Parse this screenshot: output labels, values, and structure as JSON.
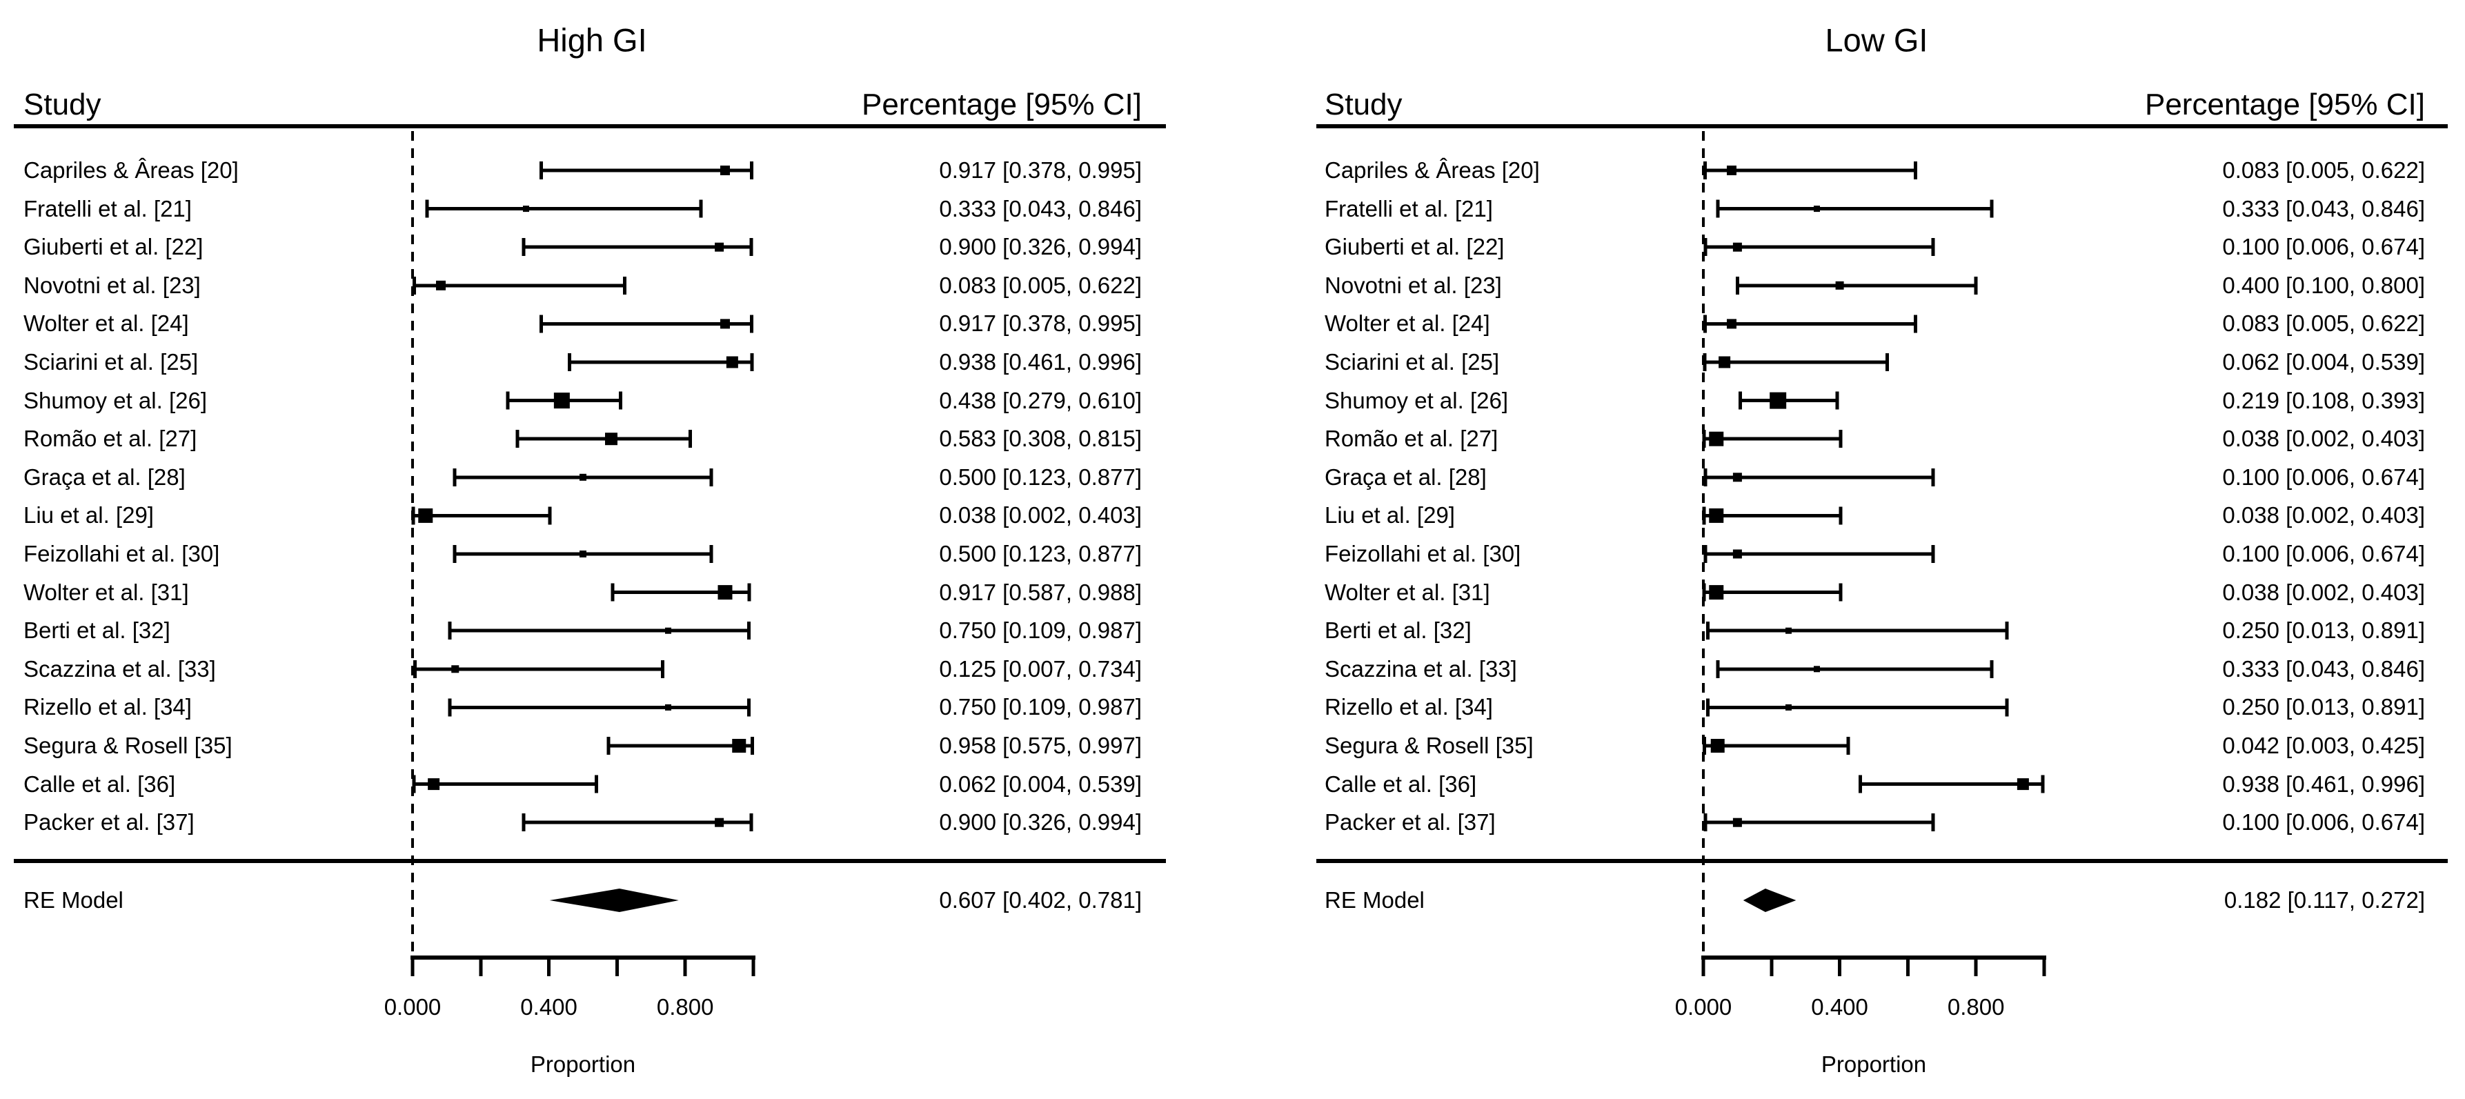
{
  "chart_data": [
    {
      "type": "scatter",
      "variant": "forest-plot",
      "title": "High GI",
      "columns": {
        "study": "Study",
        "value": "Percentage [95% CI]"
      },
      "xlabel": "Proportion",
      "xlim": [
        0,
        1
      ],
      "x_ticks": [
        0,
        0.2,
        0.4,
        0.6,
        0.8,
        1.0
      ],
      "x_tick_labels": [
        {
          "v": 0.0,
          "label": "0.000"
        },
        {
          "v": 0.4,
          "label": "0.400"
        },
        {
          "v": 0.8,
          "label": "0.800"
        }
      ],
      "zero_line": "dashed",
      "studies": [
        {
          "label": "Capriles & Âreas [20]",
          "est": 0.917,
          "lo": 0.378,
          "hi": 0.995,
          "ci_text": "0.917 [0.378, 0.995]"
        },
        {
          "label": "Fratelli et al. [21]",
          "est": 0.333,
          "lo": 0.043,
          "hi": 0.846,
          "ci_text": "0.333 [0.043, 0.846]"
        },
        {
          "label": "Giuberti et al. [22]",
          "est": 0.9,
          "lo": 0.326,
          "hi": 0.994,
          "ci_text": "0.900 [0.326, 0.994]"
        },
        {
          "label": "Novotni et al. [23]",
          "est": 0.083,
          "lo": 0.005,
          "hi": 0.622,
          "ci_text": "0.083 [0.005, 0.622]"
        },
        {
          "label": "Wolter et al. [24]",
          "est": 0.917,
          "lo": 0.378,
          "hi": 0.995,
          "ci_text": "0.917 [0.378, 0.995]"
        },
        {
          "label": "Sciarini et al. [25]",
          "est": 0.938,
          "lo": 0.461,
          "hi": 0.996,
          "ci_text": "0.938 [0.461, 0.996]"
        },
        {
          "label": "Shumoy et al. [26]",
          "est": 0.438,
          "lo": 0.279,
          "hi": 0.61,
          "ci_text": "0.438 [0.279, 0.610]"
        },
        {
          "label": "Romão et al. [27]",
          "est": 0.583,
          "lo": 0.308,
          "hi": 0.815,
          "ci_text": "0.583 [0.308, 0.815]"
        },
        {
          "label": "Graça et al. [28]",
          "est": 0.5,
          "lo": 0.123,
          "hi": 0.877,
          "ci_text": "0.500 [0.123, 0.877]"
        },
        {
          "label": "Liu et al. [29]",
          "est": 0.038,
          "lo": 0.002,
          "hi": 0.403,
          "ci_text": "0.038 [0.002, 0.403]"
        },
        {
          "label": "Feizollahi et al. [30]",
          "est": 0.5,
          "lo": 0.123,
          "hi": 0.877,
          "ci_text": "0.500 [0.123, 0.877]"
        },
        {
          "label": "Wolter et al. [31]",
          "est": 0.917,
          "lo": 0.587,
          "hi": 0.988,
          "ci_text": "0.917 [0.587, 0.988]"
        },
        {
          "label": "Berti et al. [32]",
          "est": 0.75,
          "lo": 0.109,
          "hi": 0.987,
          "ci_text": "0.750 [0.109, 0.987]"
        },
        {
          "label": "Scazzina et al. [33]",
          "est": 0.125,
          "lo": 0.007,
          "hi": 0.734,
          "ci_text": "0.125 [0.007, 0.734]"
        },
        {
          "label": "Rizello et al. [34]",
          "est": 0.75,
          "lo": 0.109,
          "hi": 0.987,
          "ci_text": "0.750 [0.109, 0.987]"
        },
        {
          "label": "Segura & Rosell [35]",
          "est": 0.958,
          "lo": 0.575,
          "hi": 0.997,
          "ci_text": "0.958 [0.575, 0.997]"
        },
        {
          "label": "Calle et al. [36]",
          "est": 0.062,
          "lo": 0.004,
          "hi": 0.539,
          "ci_text": "0.062 [0.004, 0.539]"
        },
        {
          "label": "Packer et al. [37]",
          "est": 0.9,
          "lo": 0.326,
          "hi": 0.994,
          "ci_text": "0.900 [0.326, 0.994]"
        }
      ],
      "summary": {
        "label": "RE Model",
        "est": 0.607,
        "lo": 0.402,
        "hi": 0.781,
        "ci_text": "0.607 [0.402, 0.781]"
      }
    },
    {
      "type": "scatter",
      "variant": "forest-plot",
      "title": "Low GI",
      "columns": {
        "study": "Study",
        "value": "Percentage [95% CI]"
      },
      "xlabel": "Proportion",
      "xlim": [
        0,
        1
      ],
      "x_ticks": [
        0,
        0.2,
        0.4,
        0.6,
        0.8,
        1.0
      ],
      "x_tick_labels": [
        {
          "v": 0.0,
          "label": "0.000"
        },
        {
          "v": 0.4,
          "label": "0.400"
        },
        {
          "v": 0.8,
          "label": "0.800"
        }
      ],
      "zero_line": "dashed",
      "studies": [
        {
          "label": "Capriles & Âreas [20]",
          "est": 0.083,
          "lo": 0.005,
          "hi": 0.622,
          "ci_text": "0.083 [0.005, 0.622]"
        },
        {
          "label": "Fratelli et al. [21]",
          "est": 0.333,
          "lo": 0.043,
          "hi": 0.846,
          "ci_text": "0.333 [0.043, 0.846]"
        },
        {
          "label": "Giuberti et al. [22]",
          "est": 0.1,
          "lo": 0.006,
          "hi": 0.674,
          "ci_text": "0.100 [0.006, 0.674]"
        },
        {
          "label": "Novotni et al. [23]",
          "est": 0.4,
          "lo": 0.1,
          "hi": 0.8,
          "ci_text": "0.400 [0.100, 0.800]"
        },
        {
          "label": "Wolter et al. [24]",
          "est": 0.083,
          "lo": 0.005,
          "hi": 0.622,
          "ci_text": "0.083 [0.005, 0.622]"
        },
        {
          "label": "Sciarini et al. [25]",
          "est": 0.062,
          "lo": 0.004,
          "hi": 0.539,
          "ci_text": "0.062 [0.004, 0.539]"
        },
        {
          "label": "Shumoy et al. [26]",
          "est": 0.219,
          "lo": 0.108,
          "hi": 0.393,
          "ci_text": "0.219 [0.108, 0.393]"
        },
        {
          "label": "Romão et al. [27]",
          "est": 0.038,
          "lo": 0.002,
          "hi": 0.403,
          "ci_text": "0.038 [0.002, 0.403]"
        },
        {
          "label": "Graça et al. [28]",
          "est": 0.1,
          "lo": 0.006,
          "hi": 0.674,
          "ci_text": "0.100 [0.006, 0.674]"
        },
        {
          "label": "Liu et al. [29]",
          "est": 0.038,
          "lo": 0.002,
          "hi": 0.403,
          "ci_text": "0.038 [0.002, 0.403]"
        },
        {
          "label": "Feizollahi et al. [30]",
          "est": 0.1,
          "lo": 0.006,
          "hi": 0.674,
          "ci_text": "0.100 [0.006, 0.674]"
        },
        {
          "label": "Wolter et al. [31]",
          "est": 0.038,
          "lo": 0.002,
          "hi": 0.403,
          "ci_text": "0.038 [0.002, 0.403]"
        },
        {
          "label": "Berti et al. [32]",
          "est": 0.25,
          "lo": 0.013,
          "hi": 0.891,
          "ci_text": "0.250 [0.013, 0.891]"
        },
        {
          "label": "Scazzina et al. [33]",
          "est": 0.333,
          "lo": 0.043,
          "hi": 0.846,
          "ci_text": "0.333 [0.043, 0.846]"
        },
        {
          "label": "Rizello et al. [34]",
          "est": 0.25,
          "lo": 0.013,
          "hi": 0.891,
          "ci_text": "0.250 [0.013, 0.891]"
        },
        {
          "label": "Segura & Rosell [35]",
          "est": 0.042,
          "lo": 0.003,
          "hi": 0.425,
          "ci_text": "0.042 [0.003, 0.425]"
        },
        {
          "label": "Calle et al. [36]",
          "est": 0.938,
          "lo": 0.461,
          "hi": 0.996,
          "ci_text": "0.938 [0.461, 0.996]"
        },
        {
          "label": "Packer et al. [37]",
          "est": 0.1,
          "lo": 0.006,
          "hi": 0.674,
          "ci_text": "0.100 [0.006, 0.674]"
        }
      ],
      "summary": {
        "label": "RE Model",
        "est": 0.182,
        "lo": 0.117,
        "hi": 0.272,
        "ci_text": "0.182 [0.117, 0.272]"
      }
    }
  ]
}
